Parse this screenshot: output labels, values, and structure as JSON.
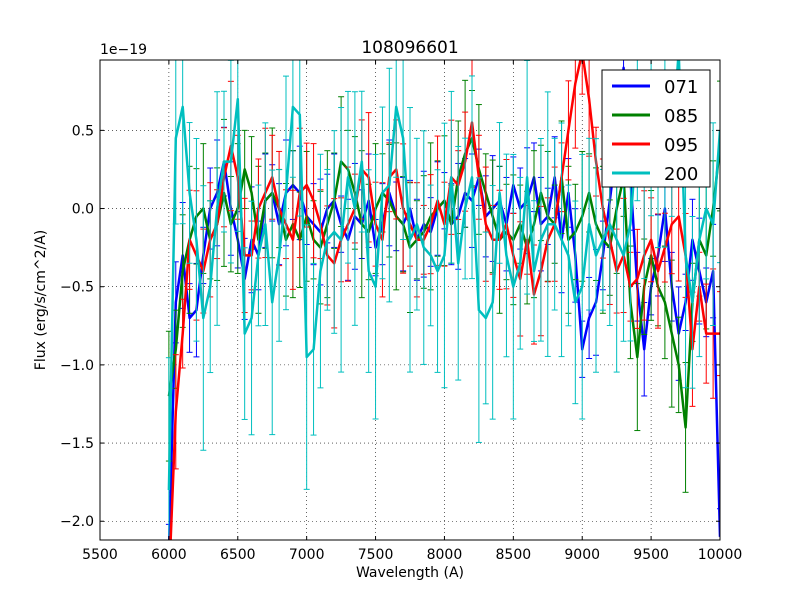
{
  "chart_data": {
    "type": "line",
    "title": "108096601",
    "xlabel": "Wavelength (A)",
    "ylabel": "Flux (erg/s/cm^2/A)",
    "offset_label": "1e−19",
    "xlim": [
      5500,
      10000
    ],
    "ylim": [
      -2.12,
      0.95
    ],
    "grid": true,
    "legend_position": "upper right",
    "x_ticks": [
      5500,
      6000,
      6500,
      7000,
      7500,
      8000,
      8500,
      9000,
      9500,
      10000
    ],
    "x_tick_labels": [
      "5500",
      "6000",
      "6500",
      "7000",
      "7500",
      "8000",
      "8500",
      "9000",
      "9500",
      "10000"
    ],
    "y_ticks": [
      0.5,
      0.0,
      -0.5,
      -1.0,
      -1.5,
      -2.0
    ],
    "y_tick_labels": [
      "0.5",
      "0.0",
      "−0.5",
      "−1.0",
      "−1.5",
      "−2.0"
    ],
    "x": [
      6000,
      6050,
      6100,
      6150,
      6200,
      6250,
      6300,
      6350,
      6400,
      6450,
      6500,
      6550,
      6600,
      6650,
      6700,
      6750,
      6800,
      6850,
      6900,
      6950,
      7000,
      7050,
      7100,
      7150,
      7200,
      7250,
      7300,
      7350,
      7400,
      7450,
      7500,
      7550,
      7600,
      7650,
      7700,
      7750,
      7800,
      7850,
      7900,
      7950,
      8000,
      8050,
      8100,
      8150,
      8200,
      8250,
      8300,
      8350,
      8400,
      8450,
      8500,
      8550,
      8600,
      8650,
      8700,
      8750,
      8800,
      8850,
      8900,
      8950,
      9000,
      9050,
      9100,
      9150,
      9200,
      9250,
      9300,
      9350,
      9400,
      9450,
      9500,
      9550,
      9600,
      9650,
      9700,
      9750,
      9800,
      9850,
      9900,
      9950,
      10000
    ],
    "series": [
      {
        "name": "071",
        "color": "#0000ff",
        "values": [
          -2.2,
          -0.6,
          -0.3,
          -0.7,
          -0.65,
          -0.3,
          0.0,
          0.1,
          0.3,
          0.0,
          -0.2,
          -0.45,
          -0.2,
          -0.3,
          0.05,
          0.1,
          -0.1,
          0.1,
          0.15,
          0.1,
          -0.05,
          -0.1,
          -0.15,
          0.0,
          0.05,
          -0.1,
          -0.2,
          -0.05,
          -0.1,
          0.05,
          -0.25,
          -0.1,
          0.1,
          -0.05,
          -0.1,
          0.0,
          -0.2,
          -0.1,
          -0.15,
          0.0,
          0.05,
          -0.1,
          -0.05,
          0.1,
          0.05,
          0.2,
          -0.05,
          0.0,
          0.05,
          -0.1,
          0.15,
          0.0,
          0.05,
          0.2,
          -0.1,
          -0.05,
          0.2,
          -0.2,
          0.1,
          -0.3,
          -0.9,
          -0.7,
          -0.6,
          -0.3,
          0.05,
          0.4,
          0.9,
          0.2,
          -0.5,
          -0.9,
          -0.5,
          -0.3,
          0.0,
          -0.5,
          -0.8,
          -0.6,
          -0.2,
          -0.4,
          -0.6,
          -0.4,
          -2.1
        ]
      },
      {
        "name": "085",
        "color": "#008000",
        "values": [
          -1.2,
          -0.9,
          -0.4,
          -0.2,
          -0.05,
          0.0,
          -0.2,
          -0.1,
          0.1,
          -0.1,
          0.0,
          0.25,
          0.1,
          -0.2,
          0.05,
          0.1,
          0.0,
          -0.2,
          -0.1,
          -0.2,
          -0.05,
          -0.2,
          -0.25,
          -0.1,
          0.05,
          0.3,
          0.25,
          0.1,
          -0.1,
          -0.15,
          0.0,
          0.1,
          0.05,
          -0.05,
          -0.1,
          -0.25,
          -0.2,
          -0.15,
          -0.05,
          0.0,
          0.05,
          -0.1,
          0.2,
          0.35,
          0.45,
          0.25,
          0.1,
          -0.05,
          -0.2,
          -0.15,
          -0.2,
          -0.1,
          -0.25,
          -0.1,
          0.1,
          -0.05,
          -0.1,
          0.2,
          -0.2,
          -0.15,
          -0.05,
          0.1,
          -0.1,
          -0.2,
          -0.25,
          0.0,
          0.2,
          -0.6,
          -0.95,
          -0.5,
          -0.3,
          -0.5,
          -0.6,
          -0.8,
          -1.0,
          -1.4,
          -0.6,
          -0.2,
          -0.3,
          0.0,
          0.4
        ]
      },
      {
        "name": "095",
        "color": "#ff0000",
        "values": [
          -2.4,
          -1.3,
          -0.8,
          -0.2,
          -0.3,
          -0.4,
          -0.2,
          -0.1,
          0.2,
          0.4,
          0.2,
          -0.3,
          -0.3,
          0.0,
          0.1,
          0.2,
          0.0,
          -0.1,
          -0.2,
          0.1,
          0.15,
          0.05,
          -0.1,
          -0.3,
          -0.35,
          -0.2,
          -0.1,
          0.0,
          0.25,
          0.2,
          -0.1,
          -0.2,
          0.2,
          0.25,
          0.0,
          -0.1,
          -0.2,
          -0.2,
          -0.1,
          0.05,
          -0.1,
          0.2,
          0.15,
          0.3,
          0.55,
          0.2,
          -0.1,
          -0.2,
          -0.2,
          -0.1,
          -0.3,
          -0.45,
          -0.2,
          -0.55,
          -0.4,
          -0.2,
          -0.1,
          0.2,
          0.5,
          0.8,
          1.0,
          0.7,
          0.3,
          0.0,
          -0.2,
          -0.4,
          -0.3,
          -0.5,
          -0.45,
          -0.3,
          -0.2,
          -0.4,
          -0.25,
          -0.1,
          -0.05,
          -0.3,
          -0.9,
          -0.5,
          -0.8,
          -0.8,
          -0.8
        ]
      },
      {
        "name": "200",
        "color": "#00bfbf",
        "values": [
          -1.8,
          0.45,
          0.65,
          0.1,
          -0.2,
          -0.7,
          -0.5,
          0.0,
          0.3,
          0.3,
          0.7,
          -0.8,
          -0.7,
          -0.3,
          -0.1,
          -0.6,
          -0.3,
          0.1,
          0.65,
          0.6,
          -0.95,
          -0.9,
          -0.4,
          -0.2,
          -0.15,
          -0.2,
          0.2,
          0.0,
          0.3,
          -0.4,
          -0.5,
          0.1,
          0.15,
          0.65,
          0.45,
          -0.2,
          -0.1,
          -0.25,
          -0.3,
          -0.4,
          -0.3,
          0.2,
          -0.35,
          0.0,
          0.2,
          -0.65,
          -0.7,
          -0.6,
          0.1,
          -0.3,
          -0.5,
          -0.35,
          0.2,
          -0.4,
          -0.2,
          -0.1,
          -0.1,
          -0.2,
          -0.3,
          -0.6,
          -0.5,
          -0.1,
          -0.3,
          -0.2,
          -0.1,
          -0.2,
          -0.3,
          -0.1,
          0.5,
          0.2,
          0.8,
          0.3,
          0.5,
          0.4,
          1.0,
          -0.3,
          -0.6,
          -0.2,
          0.0,
          -0.1,
          0.5
        ]
      }
    ],
    "legend": [
      "071",
      "085",
      "095",
      "200"
    ]
  }
}
